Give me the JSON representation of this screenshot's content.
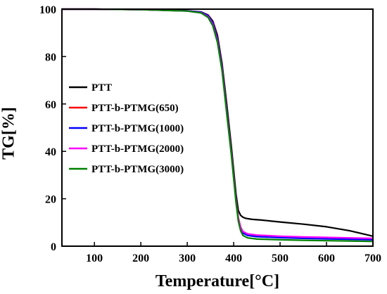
{
  "chart_data": {
    "type": "line",
    "title": "",
    "xlabel": "Temperature[°C]",
    "ylabel": "TG[%]",
    "xlim": [
      30,
      700
    ],
    "ylim": [
      0,
      100
    ],
    "xticks": [
      100,
      200,
      300,
      400,
      500,
      600,
      700
    ],
    "yticks": [
      0,
      20,
      40,
      60,
      80,
      100
    ],
    "grid": false,
    "legend": "center-left",
    "series": [
      {
        "name": "PTT",
        "color": "#000000",
        "x": [
          30,
          100,
          200,
          300,
          330,
          345,
          355,
          365,
          375,
          385,
          395,
          400,
          405,
          410,
          415,
          420,
          425,
          430,
          440,
          460,
          500,
          550,
          600,
          650,
          700
        ],
        "y": [
          100,
          100,
          99.8,
          99.3,
          98.8,
          97.5,
          95,
          89,
          77,
          60,
          42,
          32,
          22,
          15,
          13,
          12.2,
          11.8,
          11.6,
          11.3,
          11,
          10.2,
          9.3,
          8.2,
          6.5,
          4.2
        ]
      },
      {
        "name": "PTT-b-PTMG(650)",
        "color": "#ff0000",
        "x": [
          30,
          100,
          200,
          300,
          330,
          345,
          355,
          365,
          375,
          385,
          395,
          400,
          405,
          410,
          415,
          420,
          430,
          450,
          500,
          550,
          600,
          650,
          700
        ],
        "y": [
          100,
          100,
          99.8,
          99.3,
          98.7,
          97.3,
          94.5,
          88,
          76,
          58,
          40,
          30,
          20,
          12,
          8,
          6,
          5,
          4.5,
          4,
          3.7,
          3.5,
          3.3,
          3
        ]
      },
      {
        "name": "PTT-b-PTMG(1000)",
        "color": "#0000ff",
        "x": [
          30,
          100,
          200,
          300,
          330,
          345,
          355,
          365,
          375,
          385,
          395,
          400,
          405,
          410,
          415,
          420,
          430,
          450,
          500,
          550,
          600,
          650,
          700
        ],
        "y": [
          100,
          100,
          99.8,
          99.3,
          98.7,
          97.2,
          94.3,
          87.5,
          75.5,
          57.5,
          39.5,
          29.5,
          19.5,
          11.5,
          7.5,
          5.5,
          4.5,
          4,
          3.6,
          3.3,
          3.1,
          2.9,
          2.7
        ]
      },
      {
        "name": "PTT-b-PTMG(2000)",
        "color": "#ff00ff",
        "x": [
          30,
          100,
          200,
          300,
          330,
          345,
          355,
          365,
          375,
          385,
          395,
          400,
          405,
          410,
          415,
          420,
          430,
          450,
          500,
          550,
          600,
          650,
          700
        ],
        "y": [
          100,
          100,
          99.8,
          99.2,
          98.5,
          96.8,
          93.5,
          86.5,
          74.5,
          56.5,
          39,
          29,
          19,
          11.5,
          8,
          6.2,
          5.2,
          4.7,
          4.2,
          3.9,
          3.7,
          3.5,
          3.3
        ]
      },
      {
        "name": "PTT-b-PTMG(3000)",
        "color": "#008000",
        "x": [
          30,
          100,
          200,
          300,
          330,
          345,
          355,
          365,
          375,
          385,
          395,
          400,
          405,
          410,
          415,
          420,
          430,
          450,
          500,
          550,
          600,
          650,
          700
        ],
        "y": [
          100,
          100,
          99.8,
          99.2,
          98.4,
          96.5,
          93,
          86,
          74,
          56,
          38.5,
          28.5,
          18.5,
          10.5,
          6.5,
          4.5,
          3.5,
          3,
          2.7,
          2.5,
          2.3,
          2.2,
          2
        ]
      }
    ]
  }
}
